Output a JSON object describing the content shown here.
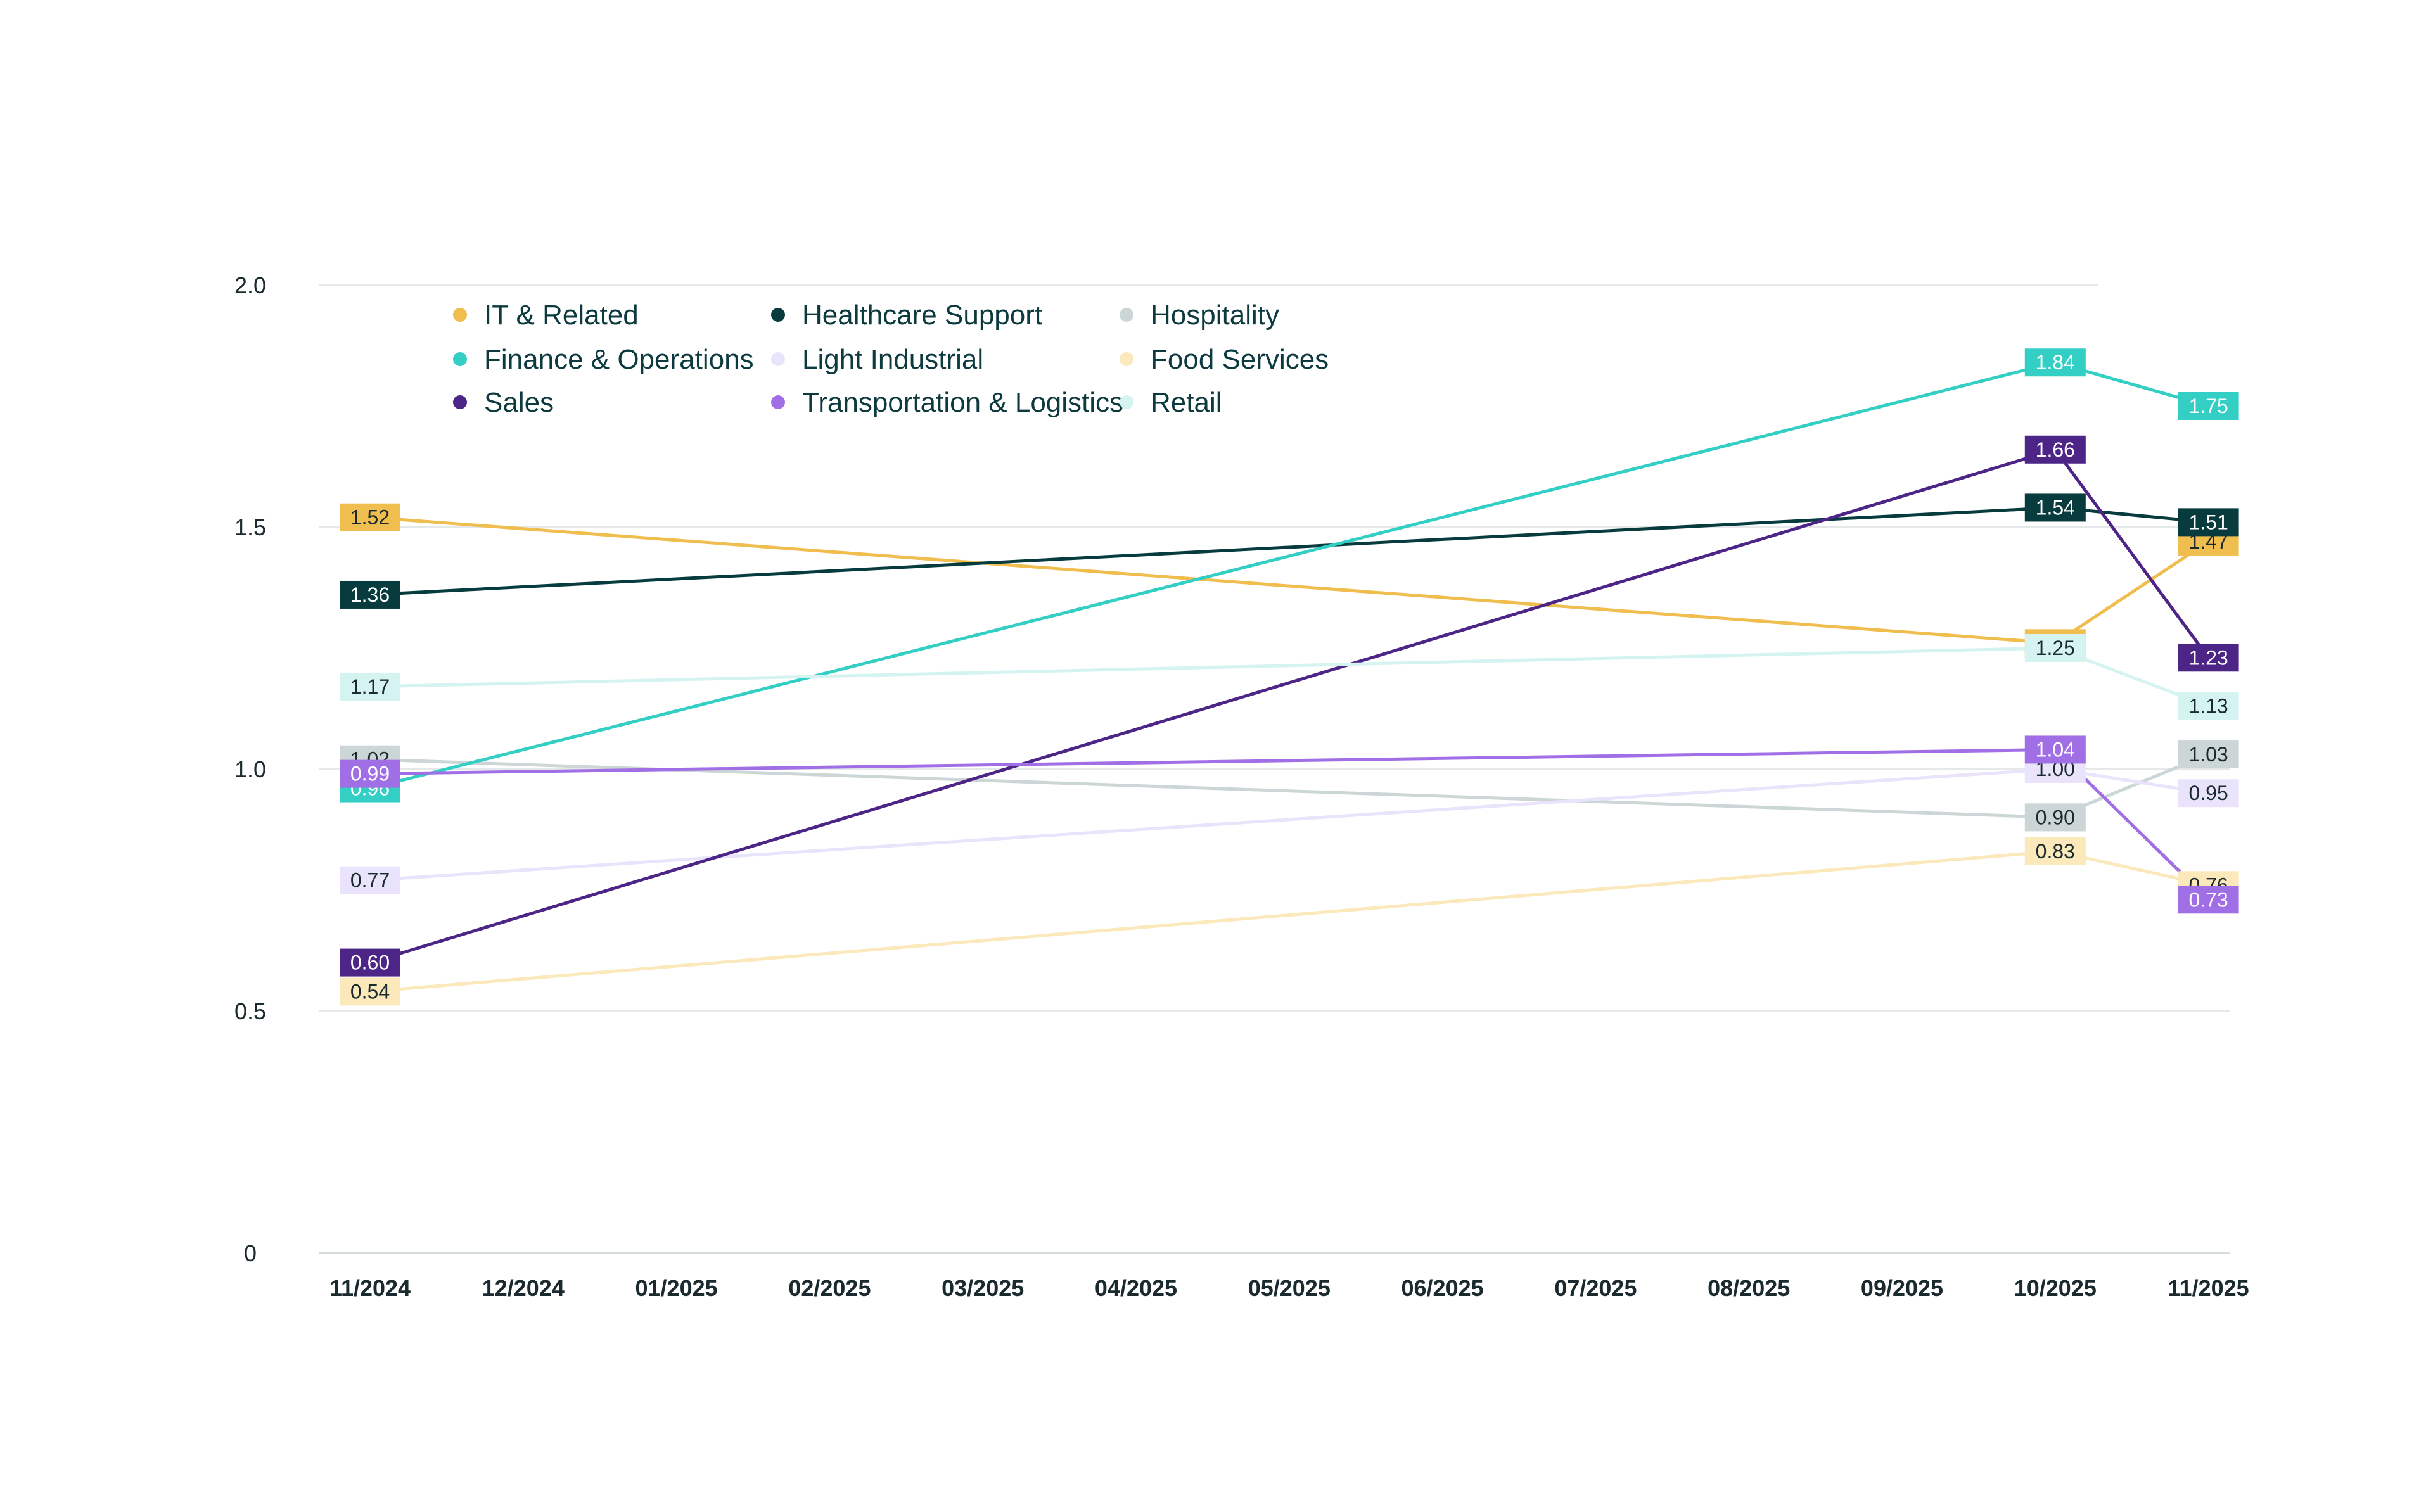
{
  "chart_data": {
    "type": "line",
    "title": "",
    "xlabel": "",
    "ylabel": "",
    "ylim": [
      0,
      2.0
    ],
    "yticks": [
      "0",
      "0.5",
      "1.0",
      "1.5",
      "2.0"
    ],
    "grid": true,
    "legend_position": "top-left",
    "categories": [
      "11/2024",
      "12/2024",
      "01/2025",
      "02/2025",
      "03/2025",
      "04/2025",
      "05/2025",
      "06/2025",
      "07/2025",
      "08/2025",
      "09/2025",
      "10/2025",
      "11/2025"
    ],
    "series": [
      {
        "name": "IT & Related",
        "color": "#f0bd4f",
        "label_text": "#1b2a2e",
        "points": [
          {
            "i": 0,
            "v": 1.52,
            "label": "1.52"
          },
          {
            "i": 11,
            "v": 1.26,
            "label": "1.26"
          },
          {
            "i": 12,
            "v": 1.47,
            "label": "1.47"
          }
        ]
      },
      {
        "name": "Healthcare Support",
        "color": "#073b3e",
        "label_text": "#ffffff",
        "points": [
          {
            "i": 0,
            "v": 1.36,
            "label": "1.36"
          },
          {
            "i": 11,
            "v": 1.54,
            "label": "1.54"
          },
          {
            "i": 12,
            "v": 1.51,
            "label": "1.51"
          }
        ]
      },
      {
        "name": "Hospitality",
        "color": "#ccd6d6",
        "label_text": "#1b2a2e",
        "points": [
          {
            "i": 0,
            "v": 1.02,
            "label": "1.02"
          },
          {
            "i": 11,
            "v": 0.9,
            "label": "0.90"
          },
          {
            "i": 12,
            "v": 1.03,
            "label": "1.03"
          }
        ]
      },
      {
        "name": "Finance & Operations",
        "color": "#33cfc4",
        "label_text": "#ffffff",
        "points": [
          {
            "i": 0,
            "v": 0.96,
            "label": "0.96"
          },
          {
            "i": 11,
            "v": 1.84,
            "label": "1.84"
          },
          {
            "i": 12,
            "v": 1.75,
            "label": "1.75"
          }
        ]
      },
      {
        "name": "Light Industrial",
        "color": "#e9e4fb",
        "label_text": "#1b2a2e",
        "points": [
          {
            "i": 0,
            "v": 0.77,
            "label": "0.77"
          },
          {
            "i": 11,
            "v": 1.0,
            "label": "1.00"
          },
          {
            "i": 12,
            "v": 0.95,
            "label": "0.95"
          }
        ]
      },
      {
        "name": "Food Services",
        "color": "#fbe8bb",
        "label_text": "#1b2a2e",
        "points": [
          {
            "i": 0,
            "v": 0.54,
            "label": "0.54"
          },
          {
            "i": 11,
            "v": 0.83,
            "label": "0.83"
          },
          {
            "i": 12,
            "v": 0.76,
            "label": "0.76"
          }
        ]
      },
      {
        "name": "Sales",
        "color": "#4c2586",
        "label_text": "#ffffff",
        "points": [
          {
            "i": 0,
            "v": 0.6,
            "label": "0.60"
          },
          {
            "i": 11,
            "v": 1.66,
            "label": "1.66"
          },
          {
            "i": 12,
            "v": 1.23,
            "label": "1.23"
          }
        ]
      },
      {
        "name": "Transportation & Logistics",
        "color": "#a06fe6",
        "label_text": "#ffffff",
        "points": [
          {
            "i": 0,
            "v": 0.99,
            "label": "0.99"
          },
          {
            "i": 11,
            "v": 1.04,
            "label": "1.04"
          },
          {
            "i": 12,
            "v": 0.73,
            "label": "0.73"
          }
        ]
      },
      {
        "name": "Retail",
        "color": "#d5f4f1",
        "label_text": "#1b2a2e",
        "points": [
          {
            "i": 0,
            "v": 1.17,
            "label": "1.17"
          },
          {
            "i": 11,
            "v": 1.25,
            "label": "1.25"
          },
          {
            "i": 12,
            "v": 1.13,
            "label": "1.13"
          }
        ]
      }
    ],
    "legend_order": [
      0,
      3,
      6,
      1,
      4,
      7,
      2,
      5,
      8
    ]
  }
}
